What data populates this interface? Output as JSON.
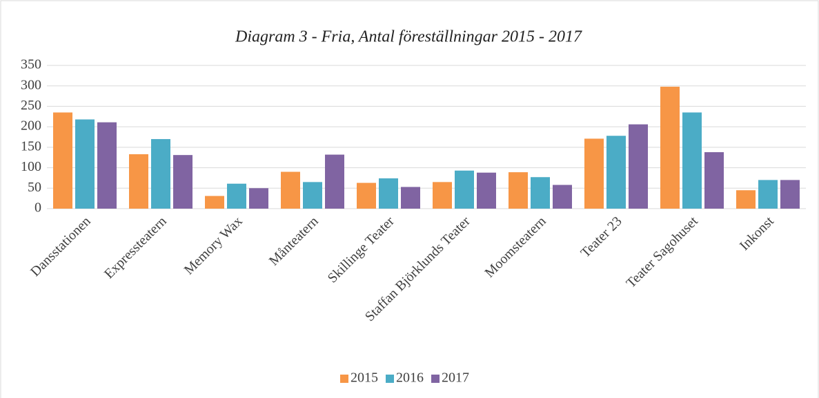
{
  "chart_data": {
    "type": "bar",
    "title": "Diagram 3 - Fria, Antal föreställningar 2015 - 2017",
    "categories": [
      "Dansstationen",
      "Expressteatern",
      "Memory Wax",
      "Månteatern",
      "Skillinge Teater",
      "Staffan Björklunds Teater",
      "Moomsteatern",
      "Teater 23",
      "Teater Sagohuset",
      "Inkonst"
    ],
    "series": [
      {
        "name": "2015",
        "color": "#f79646",
        "values": [
          235,
          133,
          31,
          90,
          63,
          65,
          89,
          171,
          298,
          45
        ]
      },
      {
        "name": "2016",
        "color": "#4bacc6",
        "values": [
          218,
          170,
          61,
          65,
          74,
          93,
          77,
          178,
          235,
          70
        ]
      },
      {
        "name": "2017",
        "color": "#8064a2",
        "values": [
          211,
          131,
          50,
          132,
          53,
          88,
          58,
          206,
          138,
          70
        ]
      }
    ],
    "ylim": [
      0,
      350
    ],
    "yticks": [
      0,
      50,
      100,
      150,
      200,
      250,
      300,
      350
    ],
    "grid": true,
    "legend": "bottom"
  }
}
